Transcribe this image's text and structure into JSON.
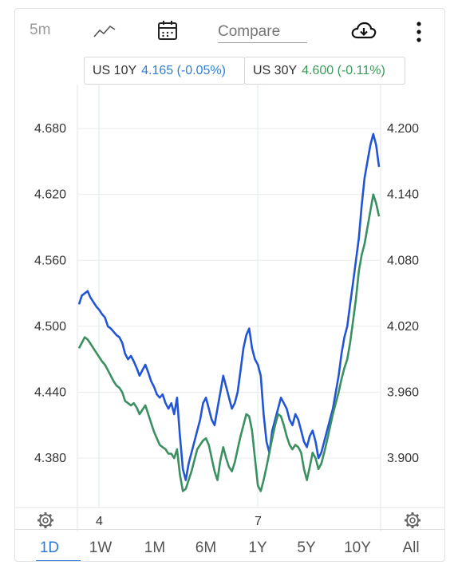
{
  "toolbar": {
    "interval_label": "5m",
    "chart_type_icon": "line-chart-icon",
    "calendar_icon": "calendar-icon",
    "compare_label": "Compare",
    "download_icon": "cloud-download-icon",
    "more_icon": "more-vertical-icon"
  },
  "legend": [
    {
      "name": "US 10Y",
      "value": "4.165 (-0.05%)",
      "color": "#2f7fd3"
    },
    {
      "name": "US 30Y",
      "value": "4.600 (-0.11%)",
      "color": "#3a9a5a"
    }
  ],
  "settings_icon": "gear-icon",
  "ranges": [
    "1D",
    "1W",
    "1M",
    "6M",
    "1Y",
    "5Y",
    "10Y",
    "All"
  ],
  "active_range": "1D",
  "chart_data": {
    "type": "line",
    "x_ticks": [
      "4",
      "7"
    ],
    "left_axis": {
      "ticks": [
        "4.680",
        "4.620",
        "4.560",
        "4.500",
        "4.440",
        "4.380"
      ],
      "range": [
        4.335,
        4.72
      ]
    },
    "right_axis": {
      "ticks": [
        "4.200",
        "4.140",
        "4.080",
        "4.020",
        "3.960",
        "3.900"
      ],
      "range": [
        3.855,
        4.24
      ]
    },
    "grid": true,
    "series": [
      {
        "name": "US 10Y",
        "axis": "right",
        "color": "#2255d6",
        "values": [
          4.04,
          4.048,
          4.05,
          4.052,
          4.046,
          4.042,
          4.038,
          4.035,
          4.031,
          4.028,
          4.02,
          4.018,
          4.015,
          4.012,
          4.01,
          4.005,
          3.995,
          3.99,
          3.993,
          3.988,
          3.982,
          3.975,
          3.98,
          3.985,
          3.978,
          3.97,
          3.965,
          3.958,
          3.955,
          3.958,
          3.95,
          3.945,
          3.95,
          3.94,
          3.955,
          3.92,
          3.89,
          3.88,
          3.895,
          3.905,
          3.915,
          3.925,
          3.935,
          3.95,
          3.955,
          3.945,
          3.935,
          3.93,
          3.945,
          3.96,
          3.975,
          3.965,
          3.955,
          3.945,
          3.95,
          3.96,
          3.98,
          4.0,
          4.012,
          4.018,
          4.0,
          3.99,
          3.985,
          3.975,
          3.94,
          3.915,
          3.905,
          3.925,
          3.935,
          3.945,
          3.955,
          3.95,
          3.945,
          3.935,
          3.93,
          3.94,
          3.935,
          3.925,
          3.915,
          3.91,
          3.92,
          3.925,
          3.915,
          3.9,
          3.905,
          3.915,
          3.925,
          3.935,
          3.945,
          3.96,
          3.975,
          3.995,
          4.01,
          4.02,
          4.04,
          4.06,
          4.08,
          4.1,
          4.13,
          4.155,
          4.17,
          4.185,
          4.195,
          4.185,
          4.165
        ]
      },
      {
        "name": "US 30Y",
        "axis": "left",
        "color": "#3a9060",
        "values": [
          4.48,
          4.485,
          4.49,
          4.488,
          4.484,
          4.48,
          4.476,
          4.472,
          4.468,
          4.465,
          4.46,
          4.455,
          4.45,
          4.446,
          4.444,
          4.44,
          4.432,
          4.43,
          4.428,
          4.43,
          4.426,
          4.42,
          4.424,
          4.428,
          4.42,
          4.412,
          4.404,
          4.398,
          4.392,
          4.39,
          4.388,
          4.384,
          4.384,
          4.38,
          4.388,
          4.365,
          4.35,
          4.352,
          4.36,
          4.368,
          4.378,
          4.388,
          4.392,
          4.396,
          4.398,
          4.392,
          4.38,
          4.368,
          4.36,
          4.378,
          4.39,
          4.38,
          4.372,
          4.368,
          4.376,
          4.388,
          4.4,
          4.41,
          4.42,
          4.418,
          4.405,
          4.38,
          4.355,
          4.35,
          4.36,
          4.372,
          4.385,
          4.398,
          4.41,
          4.42,
          4.418,
          4.41,
          4.4,
          4.392,
          4.388,
          4.392,
          4.39,
          4.385,
          4.37,
          4.36,
          4.372,
          4.385,
          4.38,
          4.37,
          4.375,
          4.385,
          4.396,
          4.408,
          4.42,
          4.43,
          4.44,
          4.452,
          4.462,
          4.47,
          4.485,
          4.505,
          4.525,
          4.55,
          4.565,
          4.575,
          4.59,
          4.605,
          4.62,
          4.612,
          4.6
        ]
      }
    ]
  }
}
